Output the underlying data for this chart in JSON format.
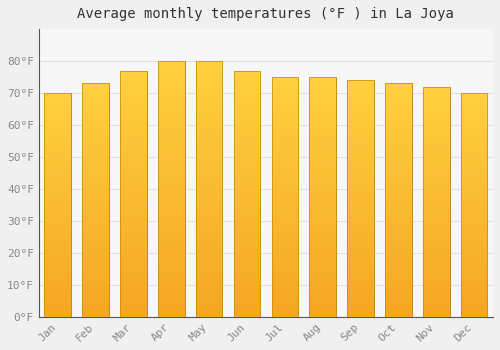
{
  "title": "Average monthly temperatures (°F ) in La Joya",
  "months": [
    "Jan",
    "Feb",
    "Mar",
    "Apr",
    "May",
    "Jun",
    "Jul",
    "Aug",
    "Sep",
    "Oct",
    "Nov",
    "Dec"
  ],
  "values": [
    70,
    73,
    77,
    80,
    80,
    77,
    75,
    75,
    74,
    73,
    72,
    70
  ],
  "bar_color_bottom": "#F5A623",
  "bar_color_top": "#FFD040",
  "bar_edge_color": "#C8860A",
  "bar_edge_width": 0.5,
  "background_color": "#f0f0f0",
  "plot_bg_color": "#f7f7f7",
  "grid_color": "#e0e0e0",
  "ylim": [
    0,
    90
  ],
  "yticks": [
    0,
    10,
    20,
    30,
    40,
    50,
    60,
    70,
    80
  ],
  "ytick_labels": [
    "0°F",
    "10°F",
    "20°F",
    "30°F",
    "40°F",
    "50°F",
    "60°F",
    "70°F",
    "80°F"
  ],
  "title_fontsize": 10,
  "tick_fontsize": 8,
  "font_family": "monospace",
  "tick_color": "#888888",
  "title_color": "#333333",
  "bar_width": 0.7
}
